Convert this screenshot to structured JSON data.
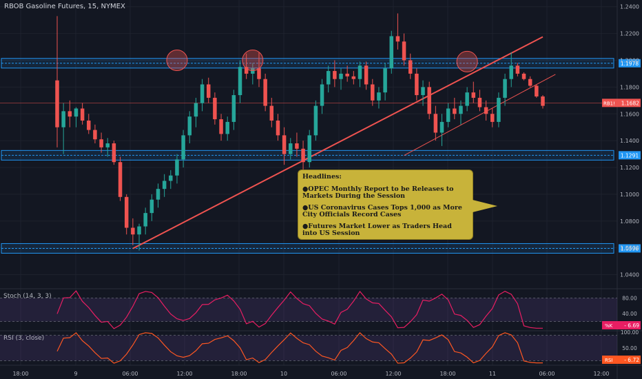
{
  "chart_data": {
    "type": "candlestick",
    "title": "RBOB Gasoline Futures, 15, NYMEX",
    "price_axis": {
      "range": [
        1.03,
        1.245
      ],
      "ticks": [
        "1.2400",
        "1.2200",
        "1.2000",
        "1.1800",
        "1.1600",
        "1.1400",
        "1.1200",
        "1.1000",
        "1.0800",
        "1.0600",
        "1.0400"
      ]
    },
    "time_axis": {
      "ticks": [
        "18:00",
        "9",
        "06:00",
        "12:00",
        "18:00",
        "10",
        "06:00",
        "12:00",
        "18:00",
        "11",
        "06:00",
        "12:00"
      ]
    },
    "candles_ohlc": [
      [
        1.185,
        1.233,
        1.135,
        1.15
      ],
      [
        1.15,
        1.168,
        1.13,
        1.162
      ],
      [
        1.162,
        1.17,
        1.15,
        1.158
      ],
      [
        1.158,
        1.165,
        1.15,
        1.164
      ],
      [
        1.164,
        1.168,
        1.152,
        1.155
      ],
      [
        1.155,
        1.16,
        1.145,
        1.148
      ],
      [
        1.148,
        1.152,
        1.138,
        1.141
      ],
      [
        1.141,
        1.146,
        1.131,
        1.135
      ],
      [
        1.135,
        1.142,
        1.128,
        1.138
      ],
      [
        1.138,
        1.14,
        1.122,
        1.124
      ],
      [
        1.124,
        1.128,
        1.095,
        1.098
      ],
      [
        1.098,
        1.1,
        1.07,
        1.075
      ],
      [
        1.075,
        1.082,
        1.062,
        1.07
      ],
      [
        1.07,
        1.078,
        1.058,
        1.076
      ],
      [
        1.076,
        1.09,
        1.07,
        1.086
      ],
      [
        1.086,
        1.1,
        1.08,
        1.096
      ],
      [
        1.096,
        1.108,
        1.09,
        1.104
      ],
      [
        1.104,
        1.115,
        1.098,
        1.11
      ],
      [
        1.11,
        1.118,
        1.104,
        1.114
      ],
      [
        1.114,
        1.13,
        1.108,
        1.126
      ],
      [
        1.126,
        1.148,
        1.12,
        1.144
      ],
      [
        1.144,
        1.162,
        1.138,
        1.158
      ],
      [
        1.158,
        1.172,
        1.15,
        1.168
      ],
      [
        1.168,
        1.186,
        1.162,
        1.182
      ],
      [
        1.182,
        1.187,
        1.168,
        1.172
      ],
      [
        1.172,
        1.176,
        1.152,
        1.156
      ],
      [
        1.156,
        1.16,
        1.14,
        1.145
      ],
      [
        1.145,
        1.158,
        1.14,
        1.154
      ],
      [
        1.154,
        1.178,
        1.148,
        1.174
      ],
      [
        1.174,
        1.2,
        1.168,
        1.195
      ],
      [
        1.195,
        1.205,
        1.186,
        1.19
      ],
      [
        1.19,
        1.198,
        1.182,
        1.194
      ],
      [
        1.194,
        1.206,
        1.18,
        1.186
      ],
      [
        1.186,
        1.19,
        1.162,
        1.166
      ],
      [
        1.166,
        1.172,
        1.15,
        1.155
      ],
      [
        1.155,
        1.16,
        1.14,
        1.144
      ],
      [
        1.144,
        1.15,
        1.122,
        1.13
      ],
      [
        1.13,
        1.142,
        1.126,
        1.138
      ],
      [
        1.138,
        1.146,
        1.128,
        1.134
      ],
      [
        1.134,
        1.14,
        1.115,
        1.124
      ],
      [
        1.124,
        1.148,
        1.12,
        1.144
      ],
      [
        1.144,
        1.17,
        1.14,
        1.166
      ],
      [
        1.166,
        1.186,
        1.16,
        1.182
      ],
      [
        1.182,
        1.196,
        1.176,
        1.192
      ],
      [
        1.192,
        1.2,
        1.18,
        1.186
      ],
      [
        1.186,
        1.194,
        1.178,
        1.19
      ],
      [
        1.19,
        1.196,
        1.184,
        1.188
      ],
      [
        1.188,
        1.192,
        1.182,
        1.186
      ],
      [
        1.186,
        1.199,
        1.18,
        1.196
      ],
      [
        1.196,
        1.199,
        1.178,
        1.182
      ],
      [
        1.182,
        1.186,
        1.166,
        1.17
      ],
      [
        1.17,
        1.18,
        1.164,
        1.176
      ],
      [
        1.176,
        1.198,
        1.17,
        1.194
      ],
      [
        1.194,
        1.222,
        1.19,
        1.218
      ],
      [
        1.218,
        1.235,
        1.208,
        1.214
      ],
      [
        1.214,
        1.22,
        1.196,
        1.2
      ],
      [
        1.2,
        1.205,
        1.186,
        1.19
      ],
      [
        1.19,
        1.194,
        1.17,
        1.174
      ],
      [
        1.174,
        1.185,
        1.166,
        1.18
      ],
      [
        1.18,
        1.184,
        1.156,
        1.16
      ],
      [
        1.16,
        1.166,
        1.14,
        1.146
      ],
      [
        1.146,
        1.16,
        1.136,
        1.154
      ],
      [
        1.154,
        1.168,
        1.15,
        1.164
      ],
      [
        1.164,
        1.172,
        1.156,
        1.16
      ],
      [
        1.16,
        1.17,
        1.152,
        1.166
      ],
      [
        1.166,
        1.18,
        1.162,
        1.176
      ],
      [
        1.176,
        1.184,
        1.168,
        1.172
      ],
      [
        1.172,
        1.178,
        1.162,
        1.165
      ],
      [
        1.165,
        1.17,
        1.155,
        1.16
      ],
      [
        1.16,
        1.164,
        1.15,
        1.154
      ],
      [
        1.154,
        1.176,
        1.15,
        1.172
      ],
      [
        1.172,
        1.19,
        1.166,
        1.186
      ],
      [
        1.186,
        1.206,
        1.18,
        1.196
      ],
      [
        1.196,
        1.198,
        1.188,
        1.19
      ],
      [
        1.19,
        1.191,
        1.185,
        1.186
      ],
      [
        1.186,
        1.188,
        1.18,
        1.181
      ],
      [
        1.181,
        1.182,
        1.172,
        1.173
      ],
      [
        1.173,
        1.174,
        1.164,
        1.166
      ]
    ],
    "horizontal_levels": [
      {
        "value": 1.1978,
        "label": "1.1978",
        "color": "#2196f3"
      },
      {
        "value": 1.1291,
        "label": "1.1291",
        "color": "#2196f3"
      },
      {
        "value": 1.0596,
        "label": "1.0596",
        "color": "#2196f3"
      }
    ],
    "current_price": {
      "symbol": "RB1!",
      "value": 1.1682,
      "label": "1.1682",
      "color": "#ef5350"
    },
    "trendlines": [
      {
        "from_candle": 12,
        "from_price": 1.0595,
        "to_candle": 77,
        "to_price": 1.2175,
        "color": "#ef5350"
      },
      {
        "from_candle": 55,
        "from_price": 1.129,
        "to_candle": 79,
        "to_price": 1.1895,
        "color": "#ef5350"
      }
    ],
    "resistance_touches": [
      {
        "candle": 19,
        "price": 1.2
      },
      {
        "candle": 31,
        "price": 1.2
      },
      {
        "candle": 65,
        "price": 1.199
      }
    ],
    "annotation": {
      "heading": "Headlines:",
      "items": [
        "OPEC Monthly Report to be Releases to Markets During the Session",
        "US Coronavirus Cases Tops 1,000 as More City Officials Record Cases",
        "Futures Market Lower as Traders Head into US Session"
      ]
    },
    "indicators": [
      {
        "name": "Stoch (14, 3, 3)",
        "value_label": "%K",
        "value": "6.69",
        "ticks": [
          "80.00",
          "40.00"
        ],
        "color": "#e91e63",
        "levels": [
          80,
          20
        ]
      },
      {
        "name": "RSI (3, close)",
        "value_label": "RSI",
        "value": "6.72",
        "ticks": [
          "100.00",
          "50.00"
        ],
        "color": "#ff5722",
        "levels": [
          90,
          10
        ]
      }
    ],
    "colors": {
      "up": "#26a69a",
      "down": "#ef5350",
      "background": "#131722"
    }
  }
}
